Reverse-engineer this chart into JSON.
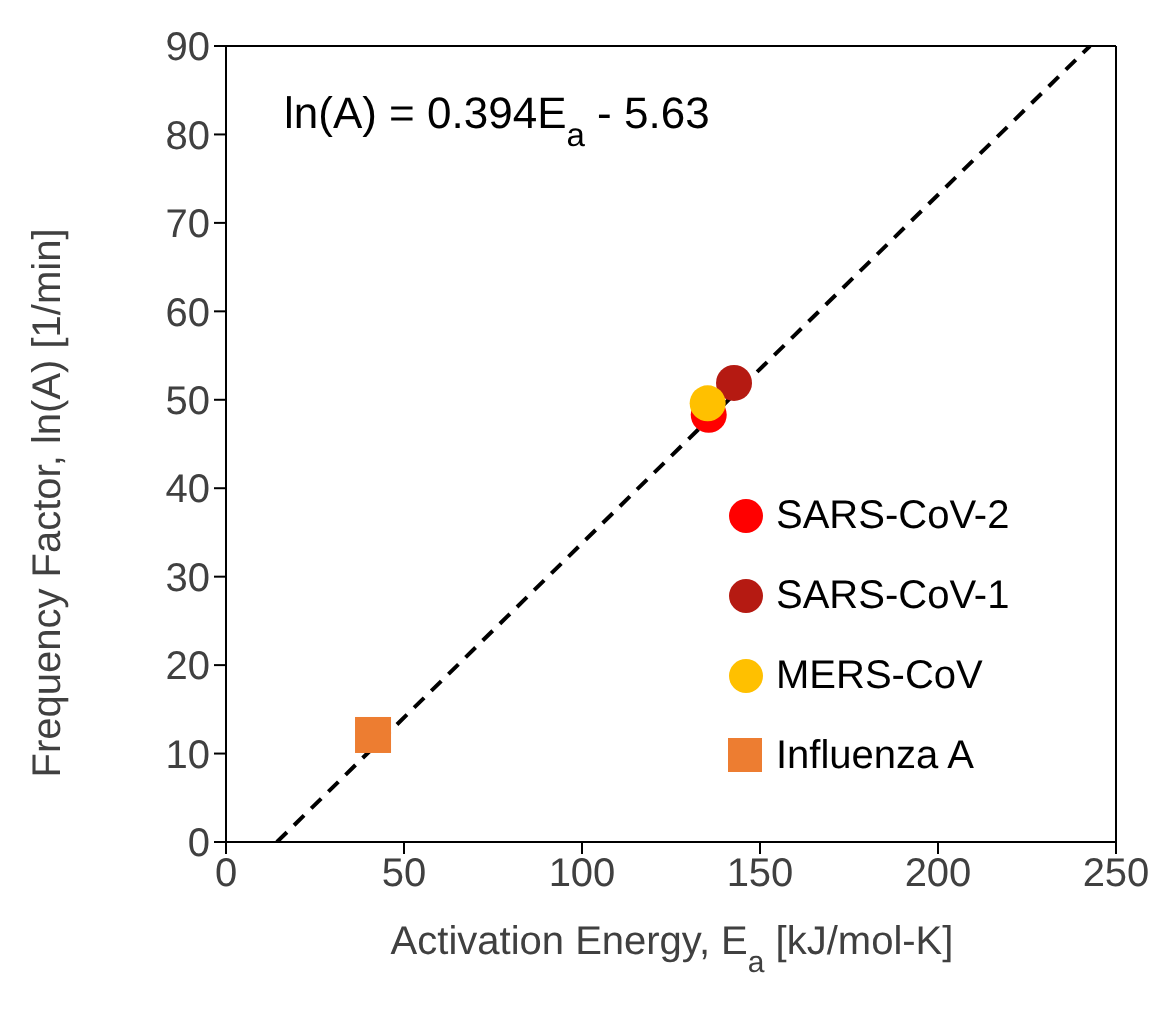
{
  "chart_data": {
    "type": "scatter",
    "xlabel": "Activation Energy, E$_{a}$ [kJ/mol-K]",
    "ylabel": "Frequency Factor, ln(A) [1/min]",
    "xlim": [
      0,
      250
    ],
    "xticks": [
      0,
      50,
      100,
      150,
      200,
      250
    ],
    "ylim": [
      0,
      90
    ],
    "yticks": [
      0,
      10,
      20,
      30,
      40,
      50,
      60,
      70,
      80,
      90
    ],
    "legend": "bottom right",
    "annotations": [
      "ln(A) = 0.394E$_{a}$ - 5.63"
    ],
    "series": [
      {
        "name": "SARS-CoV-2",
        "color": "#ff0000",
        "marker": "circle",
        "x": [
          135.6
        ],
        "values": [
          48.3
        ]
      },
      {
        "name": "SARS-CoV-1",
        "color": "#b51a12",
        "marker": "circle",
        "x": [
          142.7
        ],
        "values": [
          51.9
        ]
      },
      {
        "name": "MERS-CoV",
        "color": "#ffc000",
        "marker": "circle",
        "x": [
          135.3
        ],
        "values": [
          49.6
        ]
      },
      {
        "name": "Influenza A",
        "color": "#ed7d31",
        "marker": "square",
        "x": [
          41.3
        ],
        "values": [
          12.1
        ]
      },
      {
        "type": "line",
        "color": "#000000",
        "line_style": "dashed",
        "marker": "none",
        "x": [
          14.3,
          242.7
        ],
        "values": [
          0,
          90
        ]
      }
    ]
  }
}
